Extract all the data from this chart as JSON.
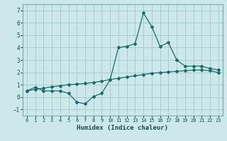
{
  "title": "",
  "xlabel": "Humidex (Indice chaleur)",
  "bg_color": "#cce8ea",
  "grid_color": "#a8ccce",
  "line_color": "#1a6b6b",
  "x_values": [
    0,
    1,
    2,
    3,
    4,
    5,
    6,
    7,
    8,
    9,
    10,
    11,
    12,
    13,
    14,
    15,
    16,
    17,
    18,
    19,
    20,
    21,
    22,
    23
  ],
  "y1_values": [
    0.5,
    0.8,
    0.5,
    0.5,
    0.5,
    0.3,
    -0.4,
    -0.55,
    0.05,
    0.3,
    1.4,
    4.0,
    4.1,
    4.3,
    6.8,
    5.7,
    4.1,
    4.4,
    3.0,
    2.5,
    2.5,
    2.5,
    2.3,
    2.2
  ],
  "y2_values": [
    0.5,
    0.62,
    0.72,
    0.82,
    0.92,
    1.0,
    1.05,
    1.1,
    1.18,
    1.28,
    1.42,
    1.52,
    1.62,
    1.72,
    1.82,
    1.92,
    1.98,
    2.03,
    2.08,
    2.13,
    2.18,
    2.18,
    2.13,
    1.98
  ],
  "ylim": [
    -1.5,
    7.5
  ],
  "yticks": [
    -1,
    0,
    1,
    2,
    3,
    4,
    5,
    6,
    7
  ],
  "xlim": [
    -0.5,
    23.5
  ],
  "xticks": [
    0,
    1,
    2,
    3,
    4,
    5,
    6,
    7,
    8,
    9,
    10,
    11,
    12,
    13,
    14,
    15,
    16,
    17,
    18,
    19,
    20,
    21,
    22,
    23
  ]
}
